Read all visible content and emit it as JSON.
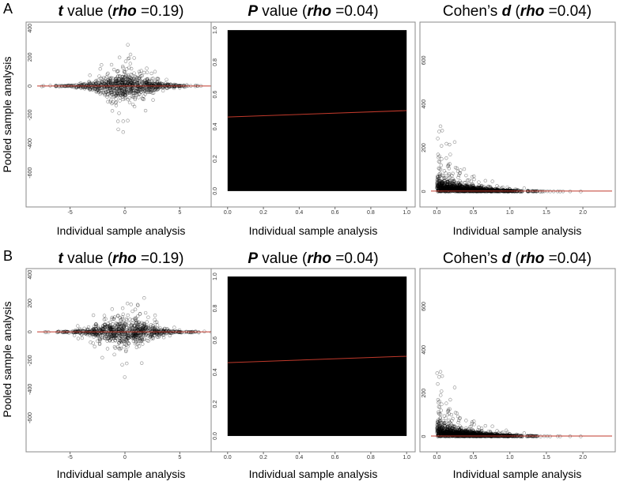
{
  "figure": {
    "ylabel": "Pooled sample analysis",
    "rows": [
      {
        "letter": "A"
      },
      {
        "letter": "B"
      }
    ]
  },
  "chart_data": [
    {
      "row": "A",
      "type": "scatter",
      "title_parts": [
        {
          "text": "t",
          "italic": true
        },
        {
          "text": " value (",
          "italic": false
        },
        {
          "text": "rho",
          "italic": true
        },
        {
          "text": " =0.19)",
          "italic": false
        }
      ],
      "xlabel": "Individual sample analysis",
      "ylabel": "Pooled sample analysis",
      "xlim": [
        -8,
        8
      ],
      "ylim": [
        -760,
        420
      ],
      "xticks": [
        -5,
        0,
        5
      ],
      "yticks": [
        -600,
        -400,
        -200,
        0,
        200,
        400
      ],
      "distribution": "symmetric",
      "fit_line": [
        [
          -8,
          0
        ],
        [
          8,
          0
        ]
      ],
      "points_color": "#000000",
      "fit_color": "#c0392b"
    },
    {
      "row": "A",
      "type": "scatter",
      "title_parts": [
        {
          "text": "P",
          "italic": true
        },
        {
          "text": " value (",
          "italic": false
        },
        {
          "text": "rho",
          "italic": true
        },
        {
          "text": " =0.04)",
          "italic": false
        }
      ],
      "xlabel": "Individual sample analysis",
      "ylabel": "",
      "xlim": [
        -0.03,
        1.03
      ],
      "ylim": [
        -0.03,
        1.03
      ],
      "xticks": [
        0.0,
        0.2,
        0.4,
        0.6,
        0.8,
        1.0
      ],
      "yticks": [
        0.0,
        0.2,
        0.4,
        0.6,
        0.8,
        1.0
      ],
      "distribution": "uniform-filled",
      "fit_line": [
        [
          0,
          0.46
        ],
        [
          1,
          0.5
        ]
      ],
      "points_color": "#000000",
      "fit_color": "#c0392b"
    },
    {
      "row": "A",
      "type": "scatter",
      "title_parts": [
        {
          "text": "Cohen’s ",
          "italic": false
        },
        {
          "text": "d",
          "italic": true
        },
        {
          "text": " (",
          "italic": false
        },
        {
          "text": "rho",
          "italic": true
        },
        {
          "text": " =0.04)",
          "italic": false
        }
      ],
      "xlabel": "Individual sample analysis",
      "ylabel": "",
      "xlim": [
        -0.08,
        2.4
      ],
      "ylim": [
        -20,
        760
      ],
      "xticks": [
        0.0,
        0.5,
        1.0,
        1.5,
        2.0
      ],
      "yticks": [
        0,
        200,
        400,
        600
      ],
      "distribution": "decay",
      "fit_line": [
        [
          -0.08,
          2
        ],
        [
          2.4,
          2
        ]
      ],
      "points_color": "#000000",
      "fit_color": "#c0392b"
    },
    {
      "row": "B",
      "type": "scatter",
      "title_parts": [
        {
          "text": "t",
          "italic": true
        },
        {
          "text": " value (",
          "italic": false
        },
        {
          "text": "rho",
          "italic": true
        },
        {
          "text": " =0.19)",
          "italic": false
        }
      ],
      "xlabel": "Individual sample analysis",
      "ylabel": "Pooled sample analysis",
      "xlim": [
        -8,
        8
      ],
      "ylim": [
        -760,
        420
      ],
      "xticks": [
        -5,
        0,
        5
      ],
      "yticks": [
        -600,
        -400,
        -200,
        0,
        200,
        400
      ],
      "distribution": "symmetric",
      "fit_line": [
        [
          -8,
          0
        ],
        [
          8,
          0
        ]
      ],
      "points_color": "#000000",
      "fit_color": "#c0392b"
    },
    {
      "row": "B",
      "type": "scatter",
      "title_parts": [
        {
          "text": "P",
          "italic": true
        },
        {
          "text": " value (",
          "italic": false
        },
        {
          "text": "rho",
          "italic": true
        },
        {
          "text": " =0.04)",
          "italic": false
        }
      ],
      "xlabel": "Individual sample analysis",
      "ylabel": "",
      "xlim": [
        -0.03,
        1.03
      ],
      "ylim": [
        -0.03,
        1.03
      ],
      "xticks": [
        0.0,
        0.2,
        0.4,
        0.6,
        0.8,
        1.0
      ],
      "yticks": [
        0.0,
        0.2,
        0.4,
        0.6,
        0.8,
        1.0
      ],
      "distribution": "uniform-filled",
      "fit_line": [
        [
          0,
          0.46
        ],
        [
          1,
          0.5
        ]
      ],
      "points_color": "#000000",
      "fit_color": "#c0392b"
    },
    {
      "row": "B",
      "type": "scatter",
      "title_parts": [
        {
          "text": "Cohen’s ",
          "italic": false
        },
        {
          "text": "d",
          "italic": true
        },
        {
          "text": " (",
          "italic": false
        },
        {
          "text": "rho",
          "italic": true
        },
        {
          "text": " =0.04)",
          "italic": false
        }
      ],
      "xlabel": "Individual sample analysis",
      "ylabel": "",
      "xlim": [
        -0.08,
        2.4
      ],
      "ylim": [
        -20,
        760
      ],
      "xticks": [
        0.0,
        0.5,
        1.0,
        1.5,
        2.0
      ],
      "yticks": [
        0,
        200,
        400,
        600
      ],
      "distribution": "decay",
      "fit_line": [
        [
          -0.08,
          2
        ],
        [
          2.4,
          2
        ]
      ],
      "points_color": "#000000",
      "fit_color": "#c0392b"
    }
  ]
}
